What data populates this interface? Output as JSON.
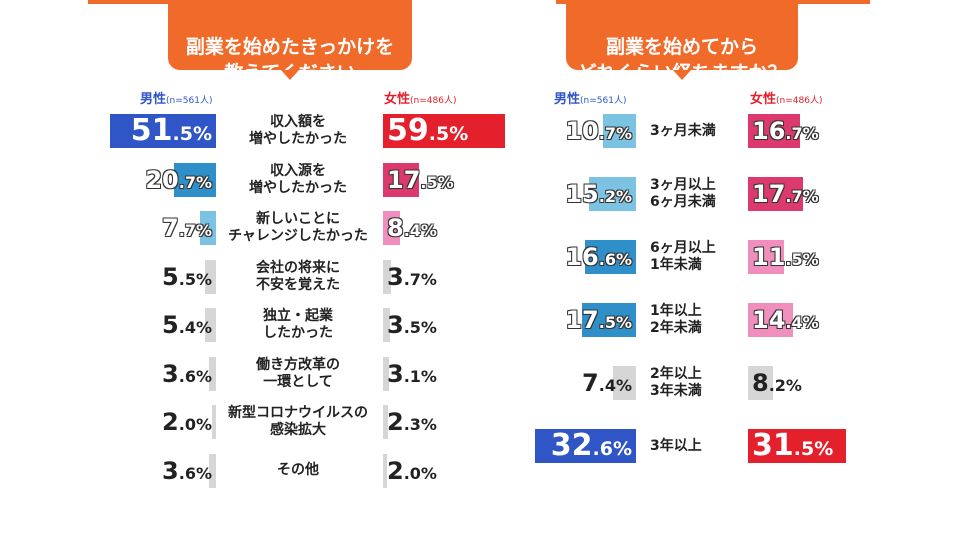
{
  "chart_data": [
    {
      "type": "bar",
      "title": "副業を始めたきっかけを\n教えてください",
      "categories": [
        "収入額を\n増やしたかった",
        "収入源を\n増やしたかった",
        "新しいことに\nチャレンジしたかった",
        "会社の将来に\n不安を覚えた",
        "独立・起業\nしたかった",
        "働き方改革の\n一環として",
        "新型コロナウイルスの\n感染拡大",
        "その他"
      ],
      "series": [
        {
          "name": "男性",
          "n_label": "(n=561人)",
          "values": [
            51.5,
            20.7,
            7.7,
            5.5,
            5.4,
            3.6,
            2.0,
            3.6
          ]
        },
        {
          "name": "女性",
          "n_label": "(n=486人)",
          "values": [
            59.5,
            17.5,
            8.4,
            3.7,
            3.5,
            3.1,
            2.3,
            2.0
          ]
        }
      ],
      "unit": "%"
    },
    {
      "type": "bar",
      "title": "副業を始めてから\nどれくらい経ちますか？",
      "categories": [
        "3ヶ月未満",
        "3ヶ月以上\n6ヶ月未満",
        "6ヶ月以上\n1年未満",
        "1年以上\n2年未満",
        "2年以上\n3年未満",
        "3年以上"
      ],
      "series": [
        {
          "name": "男性",
          "n_label": "(n=561人)",
          "values": [
            10.7,
            15.2,
            16.6,
            17.5,
            7.4,
            32.6
          ]
        },
        {
          "name": "女性",
          "n_label": "(n=486人)",
          "values": [
            16.7,
            17.7,
            11.5,
            14.4,
            8.2,
            31.5
          ]
        }
      ],
      "unit": "%"
    }
  ],
  "colors": {
    "accent": "#f06a2a",
    "male_strong": "#2f55c6",
    "male_mid": "#2e8fc9",
    "male_light": "#7cc3e3",
    "female_strong": "#e3202c",
    "female_mid": "#dc3a6e",
    "female_light": "#f08fbd",
    "neutral": "#d6d6d6"
  }
}
